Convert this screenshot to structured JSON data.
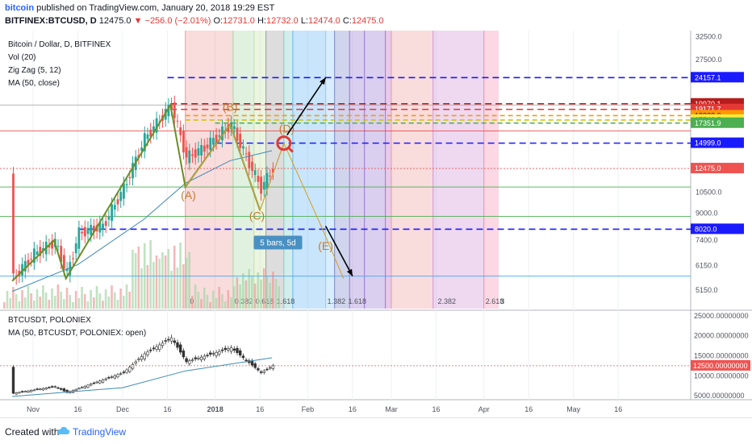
{
  "header": {
    "publisher": "bitcoin",
    "published_text": "published on TradingView.com, January 20, 2018 19:29 EST",
    "symbol": "BITFINEX:BTCUSD, D",
    "last": "12475.0",
    "change": "−256.0 (−2.01%)",
    "o_label": "O:",
    "o_value": "12731.0",
    "h_label": "H:",
    "h_value": "12732.0",
    "l_label": "L:",
    "l_value": "12474.0",
    "c_label": "C:",
    "c_value": "12475.0"
  },
  "legend_main": [
    "Bitcoin / Dollar, D, BITFINEX",
    "Vol (20)",
    "Zig Zag (5, 12)",
    "MA (50, close)"
  ],
  "legend_sub": [
    "BTCUSDT, POLONIEX",
    "MA (50, BTCUSDT, POLONIEX: open)"
  ],
  "pattern_labels": [
    "(A)",
    "(B)",
    "(C)",
    "(D)",
    "(E)"
  ],
  "measure_label": "5 bars, 5d",
  "fib_labels": [
    "0",
    "0.382",
    "0.618",
    "1",
    "1.382",
    "1.618",
    "2",
    "2.382",
    "2.618",
    "3"
  ],
  "fib_bottom_labels": [
    {
      "text": "0"
    },
    {
      "text": "0.382"
    },
    {
      "text": "0.618"
    },
    {
      "text": "1.618"
    },
    {
      "text": "1.382"
    },
    {
      "text": "1.618"
    },
    {
      "text": "2.382"
    },
    {
      "text": "2.618"
    },
    {
      "text": "3"
    }
  ],
  "colors": {
    "price_up": "#26a69a",
    "price_down": "#ef5350",
    "zigzag": "#6b8e23",
    "ma": "#3e8bb4",
    "blue_dash": "#1a1aff",
    "red_dash": "#e53935",
    "green_dash": "#4caf50",
    "orange_dash": "#ff9800"
  },
  "chart_data": [
    {
      "type": "line",
      "title": "Bitcoin / Dollar, D, BITFINEX",
      "y_scale": "log",
      "ylim": [
        4500,
        34000
      ],
      "x_tick_labels": [
        "Nov",
        "16",
        "Dec",
        "16",
        "2018",
        "16",
        "Feb",
        "16",
        "Mar",
        "16",
        "Apr",
        "16",
        "May",
        "16"
      ],
      "y_tick_labels": [
        "32500.0",
        "27500.0",
        "10500.0",
        "9000.0",
        "7400.0",
        "6150.0",
        "5150.0"
      ],
      "price_labels": [
        {
          "value": "24157.1",
          "color": "#1a1aff"
        },
        {
          "value": "19970.1",
          "color": "#b71c1c"
        },
        {
          "value": "19171.7",
          "color": "#e53935"
        },
        {
          "value": "18322.0",
          "color": "#ff9800"
        },
        {
          "value": "17749.7",
          "color": "#ffeb3b"
        },
        {
          "value": "17351.9",
          "color": "#4caf50"
        },
        {
          "value": "14999.0",
          "color": "#1a1aff"
        },
        {
          "value": "12475.0",
          "color": "#ef5350"
        },
        {
          "value": "8020.0",
          "color": "#1a1aff"
        }
      ],
      "series": [
        {
          "name": "BTCUSD",
          "x": [
            "Oct 25",
            "Nov 1",
            "Nov 8",
            "Nov 12",
            "Nov 16",
            "Nov 24",
            "Dec 1",
            "Dec 8",
            "Dec 17",
            "Dec 22",
            "Dec 28",
            "Jan 6",
            "Jan 10",
            "Jan 16",
            "Jan 20"
          ],
          "values": [
            5600,
            6700,
            7300,
            5800,
            7800,
            8200,
            10800,
            15500,
            19800,
            13500,
            14500,
            17200,
            14200,
            10800,
            12475
          ]
        },
        {
          "name": "MA (50, close)",
          "x": [
            "Oct 25",
            "Nov 16",
            "Dec 8",
            "Dec 22",
            "Jan 6",
            "Jan 20"
          ],
          "values": [
            5100,
            6200,
            8600,
            11200,
            13200,
            14200
          ]
        },
        {
          "name": "Zig Zag (5, 12)",
          "x": [
            "Oct 25",
            "Nov 8",
            "Nov 12",
            "Dec 17",
            "Dec 22",
            "Jan 6",
            "Jan 16"
          ],
          "values": [
            5500,
            7400,
            5600,
            19800,
            10900,
            17200,
            9200
          ]
        },
        {
          "name": "Projection",
          "x": [
            "Jan 16",
            "Jan 24",
            "Feb 6",
            "Feb 13"
          ],
          "values": [
            9200,
            15000,
            8000,
            5600
          ]
        }
      ],
      "levels": [
        24157.1,
        19970.1,
        19171.7,
        18322.0,
        17749.7,
        17351.9,
        14999.0,
        12475.0,
        8020.0
      ]
    },
    {
      "type": "line",
      "title": "BTCUSDT, POLONIEX",
      "ylim": [
        4000,
        26000
      ],
      "y_tick_labels": [
        "25000.00000000",
        "20000.00000000",
        "15000.00000000",
        "10000.00000000",
        "5000.00000000"
      ],
      "price_label": "12500.00000000",
      "series": [
        {
          "name": "BTCUSDT",
          "x": [
            "Oct 25",
            "Nov 8",
            "Nov 12",
            "Dec 1",
            "Dec 8",
            "Dec 17",
            "Dec 22",
            "Jan 6",
            "Jan 16",
            "Jan 20"
          ],
          "values": [
            5600,
            7300,
            5800,
            10800,
            15500,
            19500,
            13500,
            17000,
            10800,
            12500
          ]
        },
        {
          "name": "MA (50, BTCUSDT, POLONIEX: open)",
          "x": [
            "Oct 25",
            "Dec 1",
            "Dec 22",
            "Jan 20"
          ],
          "values": [
            4800,
            7000,
            11200,
            14500
          ]
        }
      ]
    }
  ]
}
